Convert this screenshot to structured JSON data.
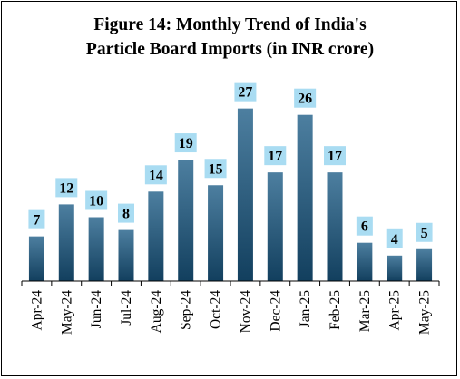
{
  "chart_data": {
    "type": "bar",
    "title_line1": "Figure 14: Monthly Trend of India's",
    "title_line2": "Particle Board Imports (in INR crore)",
    "categories": [
      "Apr-24",
      "May-24",
      "Jun-24",
      "Jul-24",
      "Aug-24",
      "Sep-24",
      "Oct-24",
      "Nov-24",
      "Dec-24",
      "Jan-25",
      "Feb-25",
      "Mar-25",
      "Apr-25",
      "May-25"
    ],
    "values": [
      7,
      12,
      10,
      8,
      14,
      19,
      15,
      27,
      17,
      26,
      17,
      6,
      4,
      5
    ],
    "ylim": [
      0,
      30
    ],
    "grid": false,
    "legend": "none",
    "colors": {
      "bar_top": "#4d7fa0",
      "bar_bottom": "#123f5e",
      "label_bg": "#a9dcf2",
      "axis": "#000000"
    }
  }
}
